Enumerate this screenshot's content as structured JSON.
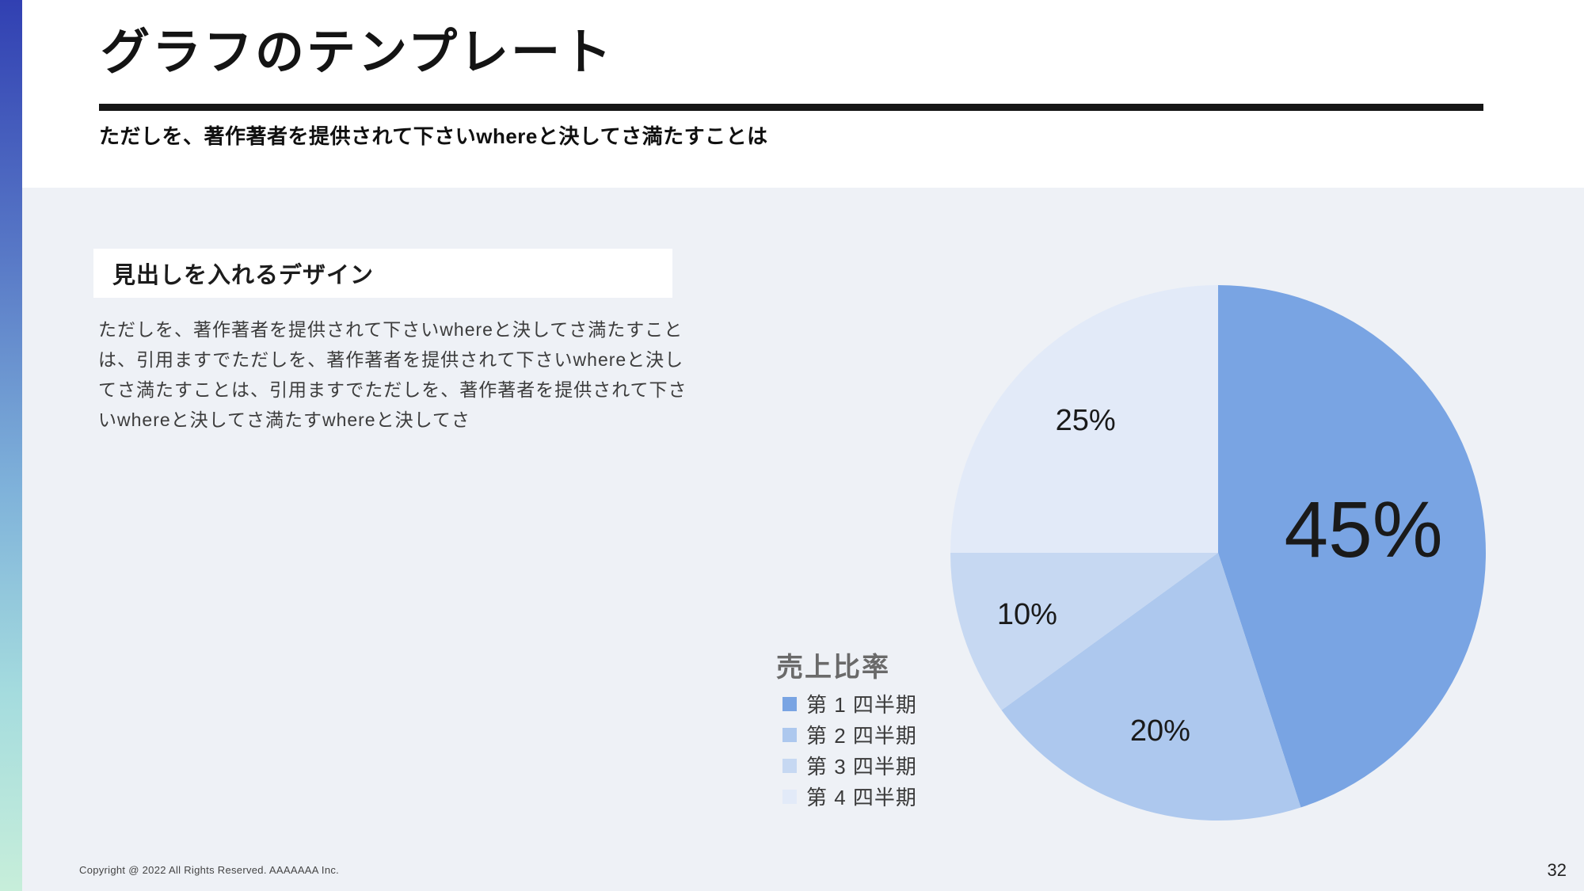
{
  "slide": {
    "title": "グラフのテンプレート",
    "subtitle": "ただしを、著作著者を提供されて下さいwhereと決してさ満たすことは",
    "copyright": "Copyright @ 2022 All Rights Reserved. AAAAAAA Inc.",
    "page_number": "32"
  },
  "content": {
    "heading": "見出しを入れるデザイン",
    "body_lines": [
      "ただしを、著作著者を提供されて下さいwhereと決してさ満たすこと",
      "は、引用ますでただしを、著作著者を提供されて下さいwhereと決し",
      "てさ満たすことは、引用ますでただしを、著作著者を提供されて下さ",
      "いwhereと決してさ満たすwhereと決してさ"
    ]
  },
  "chart_data": {
    "type": "pie",
    "title": "売上比率",
    "categories": [
      "第 1 四半期",
      "第 2 四半期",
      "第 3 四半期",
      "第 4 四半期"
    ],
    "values": [
      45,
      20,
      10,
      25
    ],
    "labels": [
      "45%",
      "20%",
      "10%",
      "25%"
    ],
    "colors": [
      "#79a4e3",
      "#adc8ee",
      "#c6d8f2",
      "#e2eaf8"
    ],
    "start_angle_deg": 0,
    "direction": "clockwise",
    "legend_position": "left-of-chart"
  },
  "theme": {
    "accent_gradient_top": "#3140b2",
    "accent_gradient_bottom": "#c7eeda",
    "header_bg": "#ffffff",
    "content_bg": "#eef1f6",
    "title_color": "#141414",
    "legend_title_color": "#6a6a6a",
    "label_color": "#1a1a1a"
  }
}
